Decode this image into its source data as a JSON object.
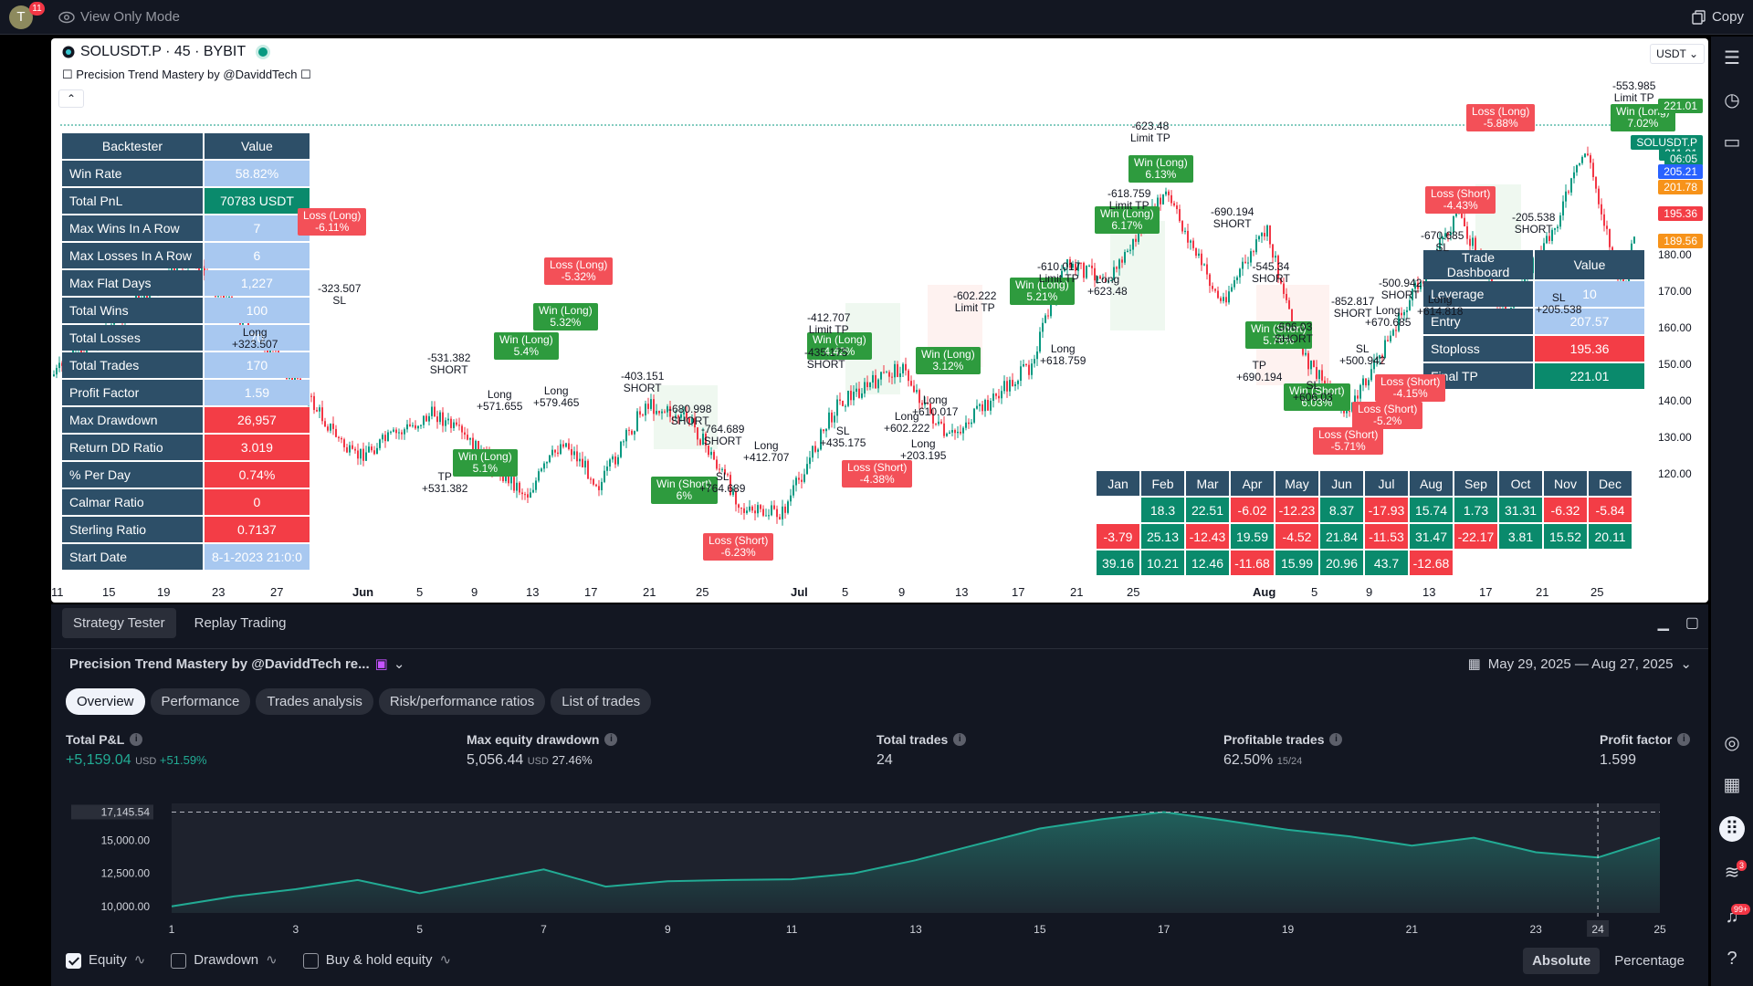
{
  "topbar": {
    "avatar_letter": "T",
    "avatar_badge": "11",
    "view_only": "View Only Mode",
    "copy": "Copy"
  },
  "chart": {
    "symbol": "SOLUSDT.P · 45 · BYBIT",
    "indicator": "Precision Trend Mastery by @DaviddTech",
    "currency": "USDT",
    "yaxis_ticks": [
      "180.00",
      "170.00",
      "160.00",
      "150.00",
      "140.00",
      "130.00",
      "120.00"
    ],
    "price_tags": [
      {
        "text": "221.01",
        "color": "#2e9b3e"
      },
      {
        "text": "SOLUSDT.P",
        "color": "#0a8a6c"
      },
      {
        "text": "211.91",
        "color": "#0a8a6c"
      },
      {
        "text": "06:05",
        "color": "#0a8a6c"
      },
      {
        "text": "205.21",
        "color": "#2962ff"
      },
      {
        "text": "201.78",
        "color": "#f7931a"
      },
      {
        "text": "195.36",
        "color": "#f33d46"
      },
      {
        "text": "189.56",
        "color": "#f7931a"
      }
    ],
    "xaxis": [
      "11",
      "15",
      "19",
      "23",
      "27",
      "Jun",
      "5",
      "9",
      "13",
      "17",
      "21",
      "25",
      "Jul",
      "5",
      "9",
      "13",
      "17",
      "21",
      "25",
      "Aug",
      "5",
      "9",
      "13",
      "17",
      "21",
      "25"
    ],
    "backtester": {
      "headers": [
        "Backtester",
        "Value"
      ],
      "rows": [
        {
          "label": "Win Rate",
          "value": "58.82%",
          "color": "#a8c8f0"
        },
        {
          "label": "Total PnL",
          "value": "70783 USDT",
          "color": "#0a8a6c"
        },
        {
          "label": "Max Wins In A Row",
          "value": "7",
          "color": "#a8c8f0"
        },
        {
          "label": "Max Losses In A Row",
          "value": "6",
          "color": "#a8c8f0"
        },
        {
          "label": "Max Flat Days",
          "value": "1,227",
          "color": "#a8c8f0"
        },
        {
          "label": "Total Wins",
          "value": "100",
          "color": "#a8c8f0"
        },
        {
          "label": "Total Losses",
          "value": "70",
          "color": "#a8c8f0"
        },
        {
          "label": "Total Trades",
          "value": "170",
          "color": "#a8c8f0"
        },
        {
          "label": "Profit Factor",
          "value": "1.59",
          "color": "#a8c8f0"
        },
        {
          "label": "Max Drawdown",
          "value": "26,957",
          "color": "#f33d46"
        },
        {
          "label": "Return DD Ratio",
          "value": "3.019",
          "color": "#f33d46"
        },
        {
          "label": "% Per Day",
          "value": "0.74%",
          "color": "#f33d46"
        },
        {
          "label": "Calmar Ratio",
          "value": "0",
          "color": "#f33d46"
        },
        {
          "label": "Sterling Ratio",
          "value": "0.7137",
          "color": "#f33d46"
        },
        {
          "label": "Start Date",
          "value": "8-1-2023 21:0:0",
          "color": "#a8c8f0"
        }
      ]
    },
    "trade_dashboard": {
      "headers": [
        "Trade Dashboard",
        "Value"
      ],
      "rows": [
        {
          "label": "Leverage",
          "value": "10",
          "color": "#a8c8f0"
        },
        {
          "label": "Entry",
          "value": "207.57",
          "color": "#a8c8f0"
        },
        {
          "label": "Stoploss",
          "value": "195.36",
          "color": "#f33d46"
        },
        {
          "label": "Final TP",
          "value": "221.01",
          "color": "#0a8a6c"
        }
      ]
    },
    "monthly": {
      "months": [
        "Jan",
        "Feb",
        "Mar",
        "Apr",
        "May",
        "Jun",
        "Jul",
        "Aug",
        "Sep",
        "Oct",
        "Nov",
        "Dec"
      ],
      "rows": [
        [
          "",
          "18.3",
          "22.51",
          "-6.02",
          "-12.23",
          "8.37",
          "-17.93",
          "15.74",
          "1.73",
          "31.31",
          "-6.32",
          "-5.84"
        ],
        [
          "-3.79",
          "25.13",
          "-12.43",
          "19.59",
          "-4.52",
          "21.84",
          "-11.53",
          "31.47",
          "-22.17",
          "3.81",
          "15.52",
          "20.11"
        ],
        [
          "39.16",
          "10.21",
          "12.46",
          "-11.68",
          "15.99",
          "20.96",
          "43.7",
          "-12.68",
          "",
          "",
          "",
          ""
        ]
      ]
    },
    "labels": [
      {
        "kind": "w",
        "text": "Win (Long)|6.13%"
      },
      {
        "kind": "w",
        "text": "Win (Long)|6.17%"
      },
      {
        "kind": "w",
        "text": "Win (Long)|5.21%"
      },
      {
        "kind": "w",
        "text": "Win (Long)|4.42%"
      },
      {
        "kind": "w",
        "text": "Win (Long)|3.12%"
      },
      {
        "kind": "w",
        "text": "Win (Long)|5.4%"
      },
      {
        "kind": "w",
        "text": "Win (Long)|7.02%"
      },
      {
        "kind": "w",
        "text": "Win (Short)|5.76%"
      },
      {
        "kind": "w",
        "text": "Win (Short)|6.03%"
      },
      {
        "kind": "w",
        "text": "Win (Short)|6%"
      },
      {
        "kind": "w",
        "text": "Win (Long)|5.1%"
      },
      {
        "kind": "w",
        "text": "Win (Long)|5.32%"
      },
      {
        "kind": "ls",
        "text": "Loss (Long)|-5.32%"
      },
      {
        "kind": "ls",
        "text": "Loss (Long)|-6.11%"
      },
      {
        "kind": "ls",
        "text": "Loss (Long)|-5.88%"
      },
      {
        "kind": "ls",
        "text": "Loss (Short)|-4.38%"
      },
      {
        "kind": "ls",
        "text": "Loss (Short)|-4.15%"
      },
      {
        "kind": "ls",
        "text": "Loss (Short)|-5.2%"
      },
      {
        "kind": "ls",
        "text": "Loss (Short)|-5.71%"
      },
      {
        "kind": "ls",
        "text": "Loss (Short)|-6.23%"
      },
      {
        "kind": "ls",
        "text": "Loss (Short)|-4.43%"
      }
    ],
    "texts": [
      "-623.48|Limit TP",
      "-553.985|Limit TP",
      "-690.194|SHORT",
      "-610.017|Limit TP",
      "-602.222|Limit TP",
      "-412.707|Limit TP",
      "-403.151|SHORT",
      "-680.998|SHORT",
      "-531.382|SHORT",
      "-323.507|SL",
      "-545.34|SHORT",
      "-205.538|SHORT",
      "-852.817|SHORT",
      "-500.942|SHORT",
      "-606.03|SHORT",
      "-670.685|SL",
      "-764.689|SHORT",
      "Long|+623.48",
      "Long|+618.759",
      "Long|+610.017",
      "Long|+602.222",
      "SL|+435.175",
      "Long|+203.195",
      "Long|+412.707",
      "Long|+571.655",
      "Long|+579.465",
      "Long|+323.507",
      "SL|+764.689",
      "TP|+531.382",
      "TP|+690.194",
      "SL|+606.03",
      "SL|+500.942",
      "Long|+614.818",
      "Long|+670.685",
      "SL|+205.538",
      "-618.759|Limit TP",
      "-435.175|SHORT"
    ]
  },
  "sidebar": {
    "badge_feed": "3",
    "badge_alert": "99+"
  },
  "panel": {
    "tabs": [
      "Strategy Tester",
      "Replay Trading"
    ],
    "strategy": "Precision Trend Mastery by @DaviddTech  re...",
    "date_range": "May 29, 2025 — Aug 27, 2025",
    "subtabs": [
      "Overview",
      "Performance",
      "Trades analysis",
      "Risk/performance ratios",
      "List of trades"
    ],
    "metrics": [
      {
        "title": "Total P&L",
        "value": "+5,159.04",
        "unit": "USD",
        "extra": "+51.59%",
        "color": "#22ab94"
      },
      {
        "title": "Max equity drawdown",
        "value": "5,056.44",
        "unit": "USD",
        "extra": "27.46%",
        "color": "#d1d4dc"
      },
      {
        "title": "Total trades",
        "value": "24",
        "unit": "",
        "extra": "",
        "color": "#d1d4dc"
      },
      {
        "title": "Profitable trades",
        "value": "62.50%",
        "unit": "15/24",
        "extra": "",
        "color": "#d1d4dc"
      },
      {
        "title": "Profit factor",
        "value": "1.599",
        "unit": "",
        "extra": "",
        "color": "#d1d4dc"
      }
    ],
    "legend": [
      {
        "label": "Equity",
        "checked": true
      },
      {
        "label": "Drawdown",
        "checked": false
      },
      {
        "label": "Buy & hold equity",
        "checked": false
      }
    ],
    "modes": [
      "Absolute",
      "Percentage"
    ]
  },
  "chart_data": {
    "type": "area",
    "title": "",
    "xlabel": "",
    "ylabel": "",
    "x": [
      1,
      2,
      3,
      4,
      5,
      6,
      7,
      8,
      9,
      10,
      11,
      12,
      13,
      14,
      15,
      16,
      17,
      18,
      19,
      20,
      21,
      22,
      23,
      24,
      25
    ],
    "values": [
      10000,
      10750,
      11300,
      12000,
      11000,
      11900,
      12800,
      11500,
      11900,
      12000,
      12050,
      12500,
      13500,
      14700,
      15900,
      16600,
      17145.54,
      16500,
      15800,
      15300,
      14600,
      15200,
      14100,
      13700,
      15200
    ],
    "yticks": [
      "17,145.54",
      "15,000.00",
      "12,500.00",
      "10,000.00"
    ],
    "ylim": [
      9500,
      17800
    ],
    "xticks": [
      "1",
      "3",
      "5",
      "7",
      "9",
      "11",
      "13",
      "15",
      "17",
      "19",
      "21",
      "23",
      "24",
      "25"
    ],
    "max_label": "17,145.54",
    "cursor_x": "24"
  }
}
